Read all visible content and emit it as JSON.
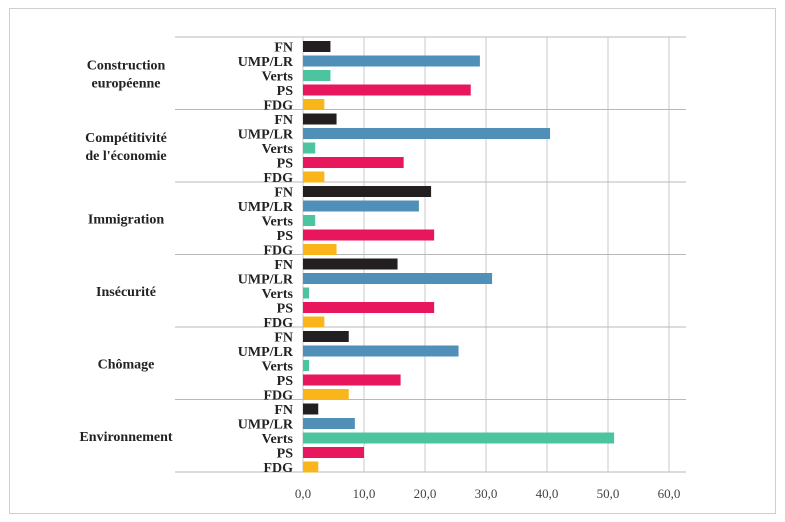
{
  "chart_data": {
    "type": "bar",
    "orientation": "horizontal",
    "title": "",
    "xlabel": "",
    "ylabel": "",
    "xlim": [
      0,
      60
    ],
    "x_ticks": [
      "0,0",
      "10,0",
      "20,0",
      "30,0",
      "40,0",
      "50,0",
      "60,0"
    ],
    "grid": "vertical",
    "legend": "none",
    "categories": [
      [
        "Construction",
        "européenne"
      ],
      [
        "Compétitivité",
        "de l'économie"
      ],
      [
        "Immigration"
      ],
      [
        "Insécurité"
      ],
      [
        "Chômage"
      ],
      [
        "Environnement"
      ]
    ],
    "series": [
      {
        "name": "FN",
        "color": "#231f20",
        "values": [
          4.5,
          5.5,
          21,
          15.5,
          7.5,
          2.5
        ]
      },
      {
        "name": "UMP/LR",
        "color": "#4f8fb8",
        "values": [
          29,
          40.5,
          19,
          31,
          25.5,
          8.5
        ]
      },
      {
        "name": "Verts",
        "color": "#4dc4a0",
        "values": [
          4.5,
          2,
          2,
          1,
          1,
          51
        ]
      },
      {
        "name": "PS",
        "color": "#e8175d",
        "values": [
          27.5,
          16.5,
          21.5,
          21.5,
          16,
          10
        ]
      },
      {
        "name": "FDG",
        "color": "#f9b51a",
        "values": [
          3.5,
          3.5,
          5.5,
          3.5,
          7.5,
          2.5
        ]
      }
    ]
  }
}
